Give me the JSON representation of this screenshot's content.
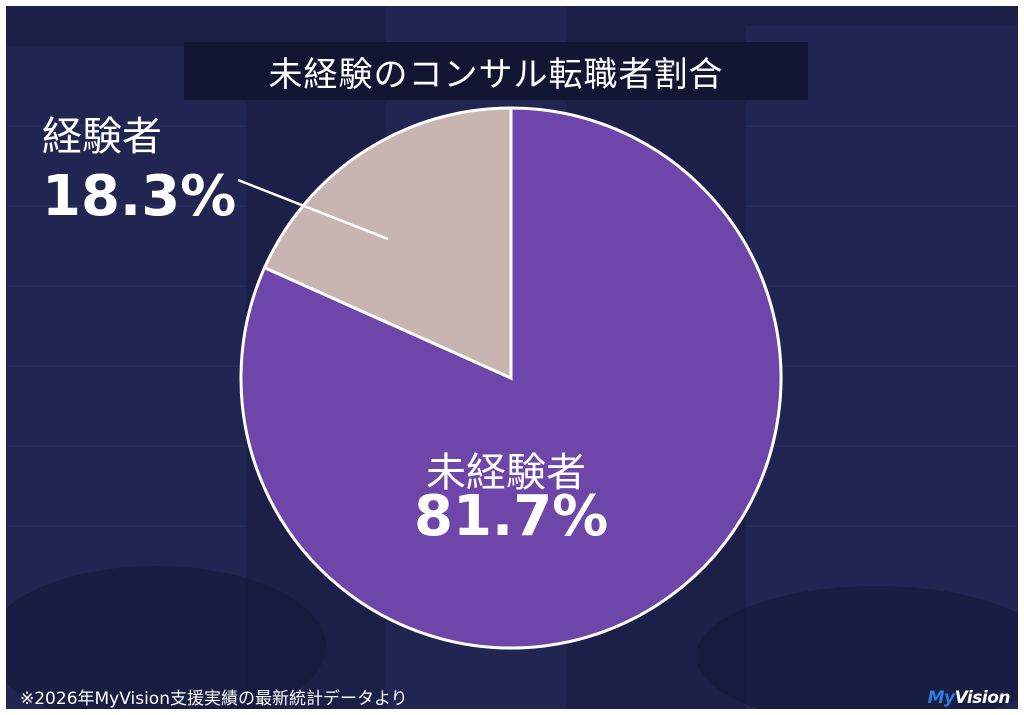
{
  "title": "未経験のコンサル転職者割合",
  "chart_data": {
    "type": "pie",
    "slices": [
      {
        "label": "未経験者",
        "value": 81.7,
        "display": "81.7%",
        "color": "#6e45a8"
      },
      {
        "label": "経験者",
        "value": 18.3,
        "display": "18.3%",
        "color": "#c8b4b1"
      }
    ],
    "start_angle": "12 o'clock, clockwise"
  },
  "footnote": "※2026年MyVision支援実績の最新統計データより",
  "logo": {
    "prefix": "My",
    "suffix": "Vision"
  },
  "colors": {
    "background": "#1c2049",
    "title_box": "#121633",
    "slice_border": "#ffffff"
  }
}
